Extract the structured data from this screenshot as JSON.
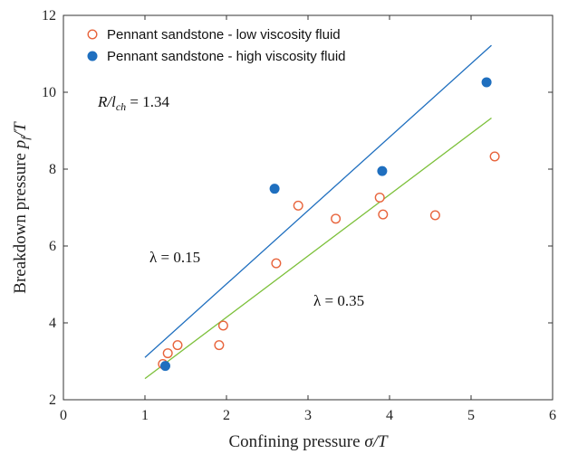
{
  "chart_data": {
    "type": "scatter",
    "xlabel_text": "Confining pressure ",
    "xlabel_math": "σ/T",
    "ylabel_text": "Breakdown pressure ",
    "ylabel_math": "p",
    "ylabel_sub": "f",
    "ylabel_tail": "/T",
    "xlim": [
      0,
      6
    ],
    "ylim": [
      2,
      12
    ],
    "x_ticks": [
      0,
      1,
      2,
      3,
      4,
      5,
      6
    ],
    "y_ticks": [
      2,
      4,
      6,
      8,
      10,
      12
    ],
    "grid": false,
    "legend_position": "top-left",
    "colors": {
      "low_viscosity": "#e8643c",
      "high_viscosity": "#1f6fbf",
      "fit_lambda_015": "#1f6fbf",
      "fit_lambda_035": "#7cc03a"
    },
    "series": [
      {
        "name": "Pennant sandstone - low viscosity fluid",
        "marker": "open-circle",
        "points": [
          [
            1.22,
            2.93
          ],
          [
            1.28,
            3.21
          ],
          [
            1.4,
            3.42
          ],
          [
            1.91,
            3.42
          ],
          [
            1.96,
            3.93
          ],
          [
            2.61,
            5.55
          ],
          [
            2.88,
            7.05
          ],
          [
            3.34,
            6.71
          ],
          [
            3.88,
            7.26
          ],
          [
            3.92,
            6.82
          ],
          [
            4.56,
            6.8
          ],
          [
            5.29,
            8.33
          ]
        ]
      },
      {
        "name": "Pennant sandstone - high viscosity fluid",
        "marker": "filled-circle",
        "points": [
          [
            1.25,
            2.88
          ],
          [
            2.59,
            7.49
          ],
          [
            3.91,
            7.95
          ],
          [
            5.19,
            10.26
          ]
        ]
      }
    ],
    "fit_lines": [
      {
        "label": "λ = 0.15",
        "x": [
          1.0,
          5.25
        ],
        "y": [
          3.1,
          11.22
        ]
      },
      {
        "label": "λ = 0.35",
        "x": [
          1.0,
          5.25
        ],
        "y": [
          2.55,
          9.33
        ]
      }
    ],
    "annotations": {
      "ratio_lhs": "R/l",
      "ratio_sub": "ch",
      "ratio_rhs": " = 1.34",
      "lambda_015": "λ = 0.15",
      "lambda_035": "λ = 0.35"
    }
  }
}
